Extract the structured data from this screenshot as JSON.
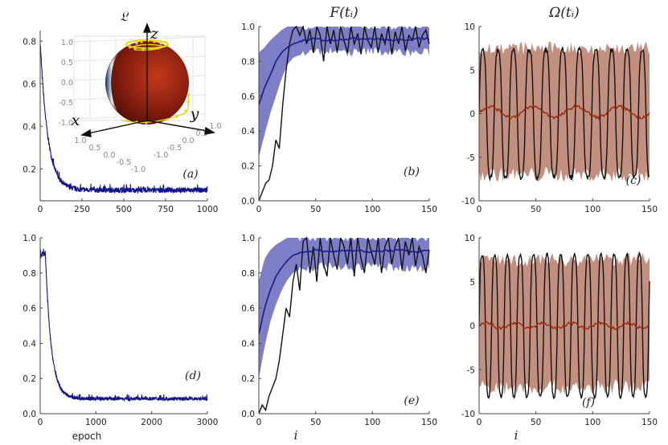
{
  "colors": {
    "loss": "#11118a",
    "fidelity_mean": "#1a1a8c",
    "fidelity_band": "#7777c4",
    "omega_mean": "#9a2a0c",
    "omega_band": "#c08a78",
    "sample": "#111111",
    "sphere": "#7a1e12",
    "trajectory": "#e6d614"
  },
  "chart_data": [
    {
      "id": "a",
      "type": "line",
      "title": "𝔏",
      "panel_label": "(a)",
      "xlabel": "",
      "ylabel": "",
      "xlim": [
        0,
        1000
      ],
      "ylim": [
        0.05,
        0.85
      ],
      "xticks": [
        0,
        250,
        500,
        750,
        1000
      ],
      "yticks": [
        0.2,
        0.4,
        0.6,
        0.8
      ],
      "decay": {
        "start": 0.8,
        "floor": 0.1,
        "rate": 0.045,
        "noise": 0.012,
        "x0": 0,
        "x1": 1000,
        "n": 900
      },
      "inset": {
        "axis_labels": [
          "x",
          "y",
          "z"
        ],
        "z_ticks": [
          "1.0",
          "0.5",
          "0.0",
          "-0.5",
          "-1.0"
        ],
        "x_ticks": [
          "1.0",
          "0.5",
          "0.0",
          "-0.5",
          "-1.0"
        ],
        "y_ticks": [
          "-1.0",
          "-0.5",
          "0.0",
          "0.5",
          "1.0"
        ]
      }
    },
    {
      "id": "b",
      "type": "line",
      "title": "F(tᵢ)",
      "panel_label": "(b)",
      "xlabel": "",
      "ylabel": "",
      "xlim": [
        0,
        150
      ],
      "ylim": [
        0,
        1.0
      ],
      "xticks": [
        0,
        50,
        100,
        150
      ],
      "yticks": [
        0.0,
        0.2,
        0.4,
        0.6,
        0.8,
        1.0
      ],
      "series": [
        {
          "name": "mean",
          "x": [
            0,
            5,
            10,
            15,
            20,
            25,
            30,
            40,
            50,
            60,
            80,
            100,
            120,
            140,
            150
          ],
          "values": [
            0.55,
            0.65,
            0.72,
            0.8,
            0.85,
            0.88,
            0.9,
            0.92,
            0.93,
            0.92,
            0.93,
            0.93,
            0.92,
            0.93,
            0.93
          ]
        },
        {
          "name": "band_upper",
          "x": [
            0,
            5,
            10,
            15,
            20,
            25,
            30,
            40,
            150
          ],
          "values": [
            0.85,
            0.88,
            0.92,
            0.95,
            0.98,
            1.0,
            1.0,
            1.0,
            1.0
          ]
        },
        {
          "name": "band_lower",
          "x": [
            0,
            5,
            10,
            15,
            20,
            25,
            30,
            40,
            60,
            80,
            100,
            120,
            150
          ],
          "values": [
            0.25,
            0.38,
            0.5,
            0.6,
            0.7,
            0.78,
            0.82,
            0.85,
            0.86,
            0.85,
            0.86,
            0.85,
            0.85
          ]
        },
        {
          "name": "sample",
          "x": [
            0,
            3,
            6,
            9,
            12,
            15,
            18,
            21,
            24,
            27,
            30,
            33,
            36,
            39,
            42,
            45,
            48,
            51,
            54,
            57,
            60,
            63,
            66,
            69,
            72,
            75,
            78,
            81,
            84,
            87,
            90,
            93,
            96,
            99,
            102,
            105,
            108,
            111,
            114,
            117,
            120,
            123,
            126,
            129,
            132,
            135,
            138,
            141,
            144,
            147,
            150
          ],
          "values": [
            0.0,
            0.05,
            0.1,
            0.12,
            0.2,
            0.35,
            0.3,
            0.55,
            0.75,
            0.9,
            0.98,
            1.0,
            0.95,
            1.0,
            0.9,
            0.98,
            0.85,
            1.0,
            0.95,
            0.8,
            1.0,
            0.9,
            0.98,
            0.85,
            1.0,
            0.92,
            0.85,
            1.0,
            0.9,
            0.96,
            0.84,
            1.0,
            0.92,
            0.88,
            1.0,
            0.85,
            0.96,
            0.9,
            1.0,
            0.84,
            0.97,
            0.9,
            1.0,
            0.86,
            0.95,
            0.92,
            1.0,
            0.88,
            0.95,
            0.98,
            0.9
          ]
        }
      ]
    },
    {
      "id": "c",
      "type": "line",
      "title": "Ω(tᵢ)",
      "panel_label": "(c)",
      "xlabel": "",
      "ylabel": "",
      "xlim": [
        0,
        150
      ],
      "ylim": [
        -10,
        10
      ],
      "xticks": [
        0,
        50,
        100,
        150
      ],
      "yticks": [
        -10,
        -5,
        0,
        5,
        10
      ],
      "band": [
        -7,
        7.5
      ],
      "mean_wave": {
        "amp": 0.6,
        "period": 38,
        "offset": 0.2
      },
      "sample_wave": {
        "amp": 8,
        "period": 14,
        "jitter": 0.5
      }
    },
    {
      "id": "d",
      "type": "line",
      "title": "",
      "panel_label": "(d)",
      "xlabel": "epoch",
      "ylabel": "",
      "xlim": [
        0,
        3000
      ],
      "ylim": [
        0,
        1.0
      ],
      "xticks": [
        0,
        1000,
        2000,
        3000
      ],
      "yticks": [
        0.0,
        0.2,
        0.4,
        0.6,
        0.8,
        1.0
      ],
      "decay": {
        "start": 0.93,
        "floor": 0.085,
        "rate": 0.035,
        "noise": 0.01,
        "x0": 0,
        "x1": 3000,
        "n": 900,
        "plateau": 0.03
      }
    },
    {
      "id": "e",
      "type": "line",
      "title": "",
      "panel_label": "(e)",
      "xlabel": "i",
      "ylabel": "",
      "xlim": [
        0,
        150
      ],
      "ylim": [
        0,
        1.0
      ],
      "xticks": [
        0,
        50,
        100,
        150
      ],
      "yticks": [
        0.0,
        0.2,
        0.4,
        0.6,
        0.8,
        1.0
      ],
      "series": [
        {
          "name": "mean",
          "x": [
            0,
            5,
            10,
            15,
            20,
            25,
            30,
            40,
            50,
            60,
            80,
            100,
            120,
            140,
            150
          ],
          "values": [
            0.45,
            0.6,
            0.7,
            0.78,
            0.83,
            0.87,
            0.9,
            0.92,
            0.93,
            0.92,
            0.93,
            0.92,
            0.93,
            0.92,
            0.93
          ]
        },
        {
          "name": "band_upper",
          "x": [
            0,
            5,
            10,
            15,
            20,
            25,
            30,
            150
          ],
          "values": [
            0.75,
            0.88,
            0.93,
            0.96,
            0.98,
            1.0,
            1.0,
            1.0
          ]
        },
        {
          "name": "band_lower",
          "x": [
            0,
            5,
            10,
            15,
            20,
            25,
            30,
            40,
            60,
            80,
            100,
            120,
            150
          ],
          "values": [
            0.2,
            0.38,
            0.52,
            0.62,
            0.7,
            0.76,
            0.8,
            0.83,
            0.84,
            0.83,
            0.84,
            0.83,
            0.83
          ]
        },
        {
          "name": "sample",
          "x": [
            0,
            3,
            6,
            9,
            12,
            15,
            18,
            21,
            24,
            27,
            30,
            33,
            36,
            39,
            42,
            45,
            48,
            51,
            54,
            57,
            60,
            63,
            66,
            69,
            72,
            75,
            78,
            81,
            84,
            87,
            90,
            93,
            96,
            99,
            102,
            105,
            108,
            111,
            114,
            117,
            120,
            123,
            126,
            129,
            132,
            135,
            138,
            141,
            144,
            147,
            150
          ],
          "values": [
            0.0,
            0.05,
            0.02,
            0.1,
            0.15,
            0.2,
            0.3,
            0.45,
            0.6,
            0.55,
            0.75,
            0.85,
            0.7,
            0.98,
            1.0,
            0.8,
            0.95,
            0.75,
            1.0,
            0.85,
            0.78,
            1.0,
            0.9,
            0.82,
            1.0,
            0.95,
            0.85,
            1.0,
            0.78,
            1.0,
            0.88,
            0.8,
            1.0,
            0.92,
            0.85,
            1.0,
            0.8,
            0.95,
            1.0,
            0.85,
            0.95,
            1.0,
            0.82,
            0.98,
            0.9,
            1.0,
            0.84,
            0.95,
            0.9,
            0.8,
            0.93
          ]
        }
      ]
    },
    {
      "id": "f",
      "type": "line",
      "title": "",
      "panel_label": "(f)",
      "xlabel": "i",
      "ylabel": "",
      "xlim": [
        0,
        150
      ],
      "ylim": [
        -10,
        10
      ],
      "xticks": [
        0,
        50,
        100,
        150
      ],
      "yticks": [
        -10,
        -5,
        0,
        5,
        10
      ],
      "band": [
        -7,
        7.5
      ],
      "mean_wave": {
        "amp": 0.3,
        "period": 25,
        "offset": 0.0
      },
      "sample_wave": {
        "amp": 8.8,
        "period": 11.5,
        "jitter": 0.3
      }
    }
  ]
}
